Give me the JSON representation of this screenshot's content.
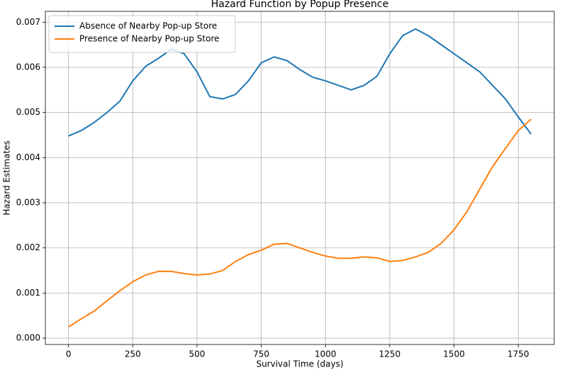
{
  "chart_data": {
    "type": "line",
    "title": "Hazard Function by Popup Presence",
    "xlabel": "Survival Time (days)",
    "ylabel": "Hazard Estimates",
    "x": [
      0,
      50,
      100,
      150,
      200,
      250,
      300,
      350,
      400,
      450,
      500,
      550,
      600,
      650,
      700,
      750,
      800,
      850,
      900,
      950,
      1000,
      1050,
      1100,
      1150,
      1200,
      1250,
      1300,
      1350,
      1400,
      1450,
      1500,
      1550,
      1600,
      1650,
      1700,
      1750,
      1800
    ],
    "series": [
      {
        "name": "Absence of Nearby Pop-up Store",
        "color": "#1f77b4",
        "values": [
          0.00448,
          0.0046,
          0.00478,
          0.005,
          0.00525,
          0.0057,
          0.00602,
          0.0062,
          0.0064,
          0.0063,
          0.0059,
          0.00535,
          0.0053,
          0.0054,
          0.0057,
          0.0061,
          0.00623,
          0.00615,
          0.00595,
          0.00578,
          0.0057,
          0.0056,
          0.0055,
          0.0056,
          0.0058,
          0.0063,
          0.0067,
          0.00685,
          0.0067,
          0.0065,
          0.0063,
          0.0061,
          0.0059,
          0.0056,
          0.0053,
          0.0049,
          0.00452
        ]
      },
      {
        "name": "Presence of Nearby Pop-up Store",
        "color": "#ff7f0e",
        "values": [
          0.00025,
          0.00043,
          0.0006,
          0.00083,
          0.00105,
          0.00125,
          0.0014,
          0.00148,
          0.00148,
          0.00143,
          0.0014,
          0.00142,
          0.0015,
          0.0017,
          0.00185,
          0.00195,
          0.00208,
          0.0021,
          0.002,
          0.0019,
          0.00182,
          0.00177,
          0.00177,
          0.0018,
          0.00178,
          0.0017,
          0.00172,
          0.0018,
          0.0019,
          0.0021,
          0.0024,
          0.0028,
          0.0033,
          0.0038,
          0.0042,
          0.0046,
          0.00485
        ]
      }
    ],
    "xlim": [
      -90,
      1890
    ],
    "ylim": [
      -0.00014,
      0.00724
    ],
    "xticks": [
      0,
      250,
      500,
      750,
      1000,
      1250,
      1500,
      1750
    ],
    "yticks": [
      {
        "value": 0,
        "label": "0.000"
      },
      0.001,
      0.002,
      0.003,
      0.004,
      0.005,
      0.006,
      0.007
    ],
    "grid": true,
    "legend": "upper left"
  }
}
